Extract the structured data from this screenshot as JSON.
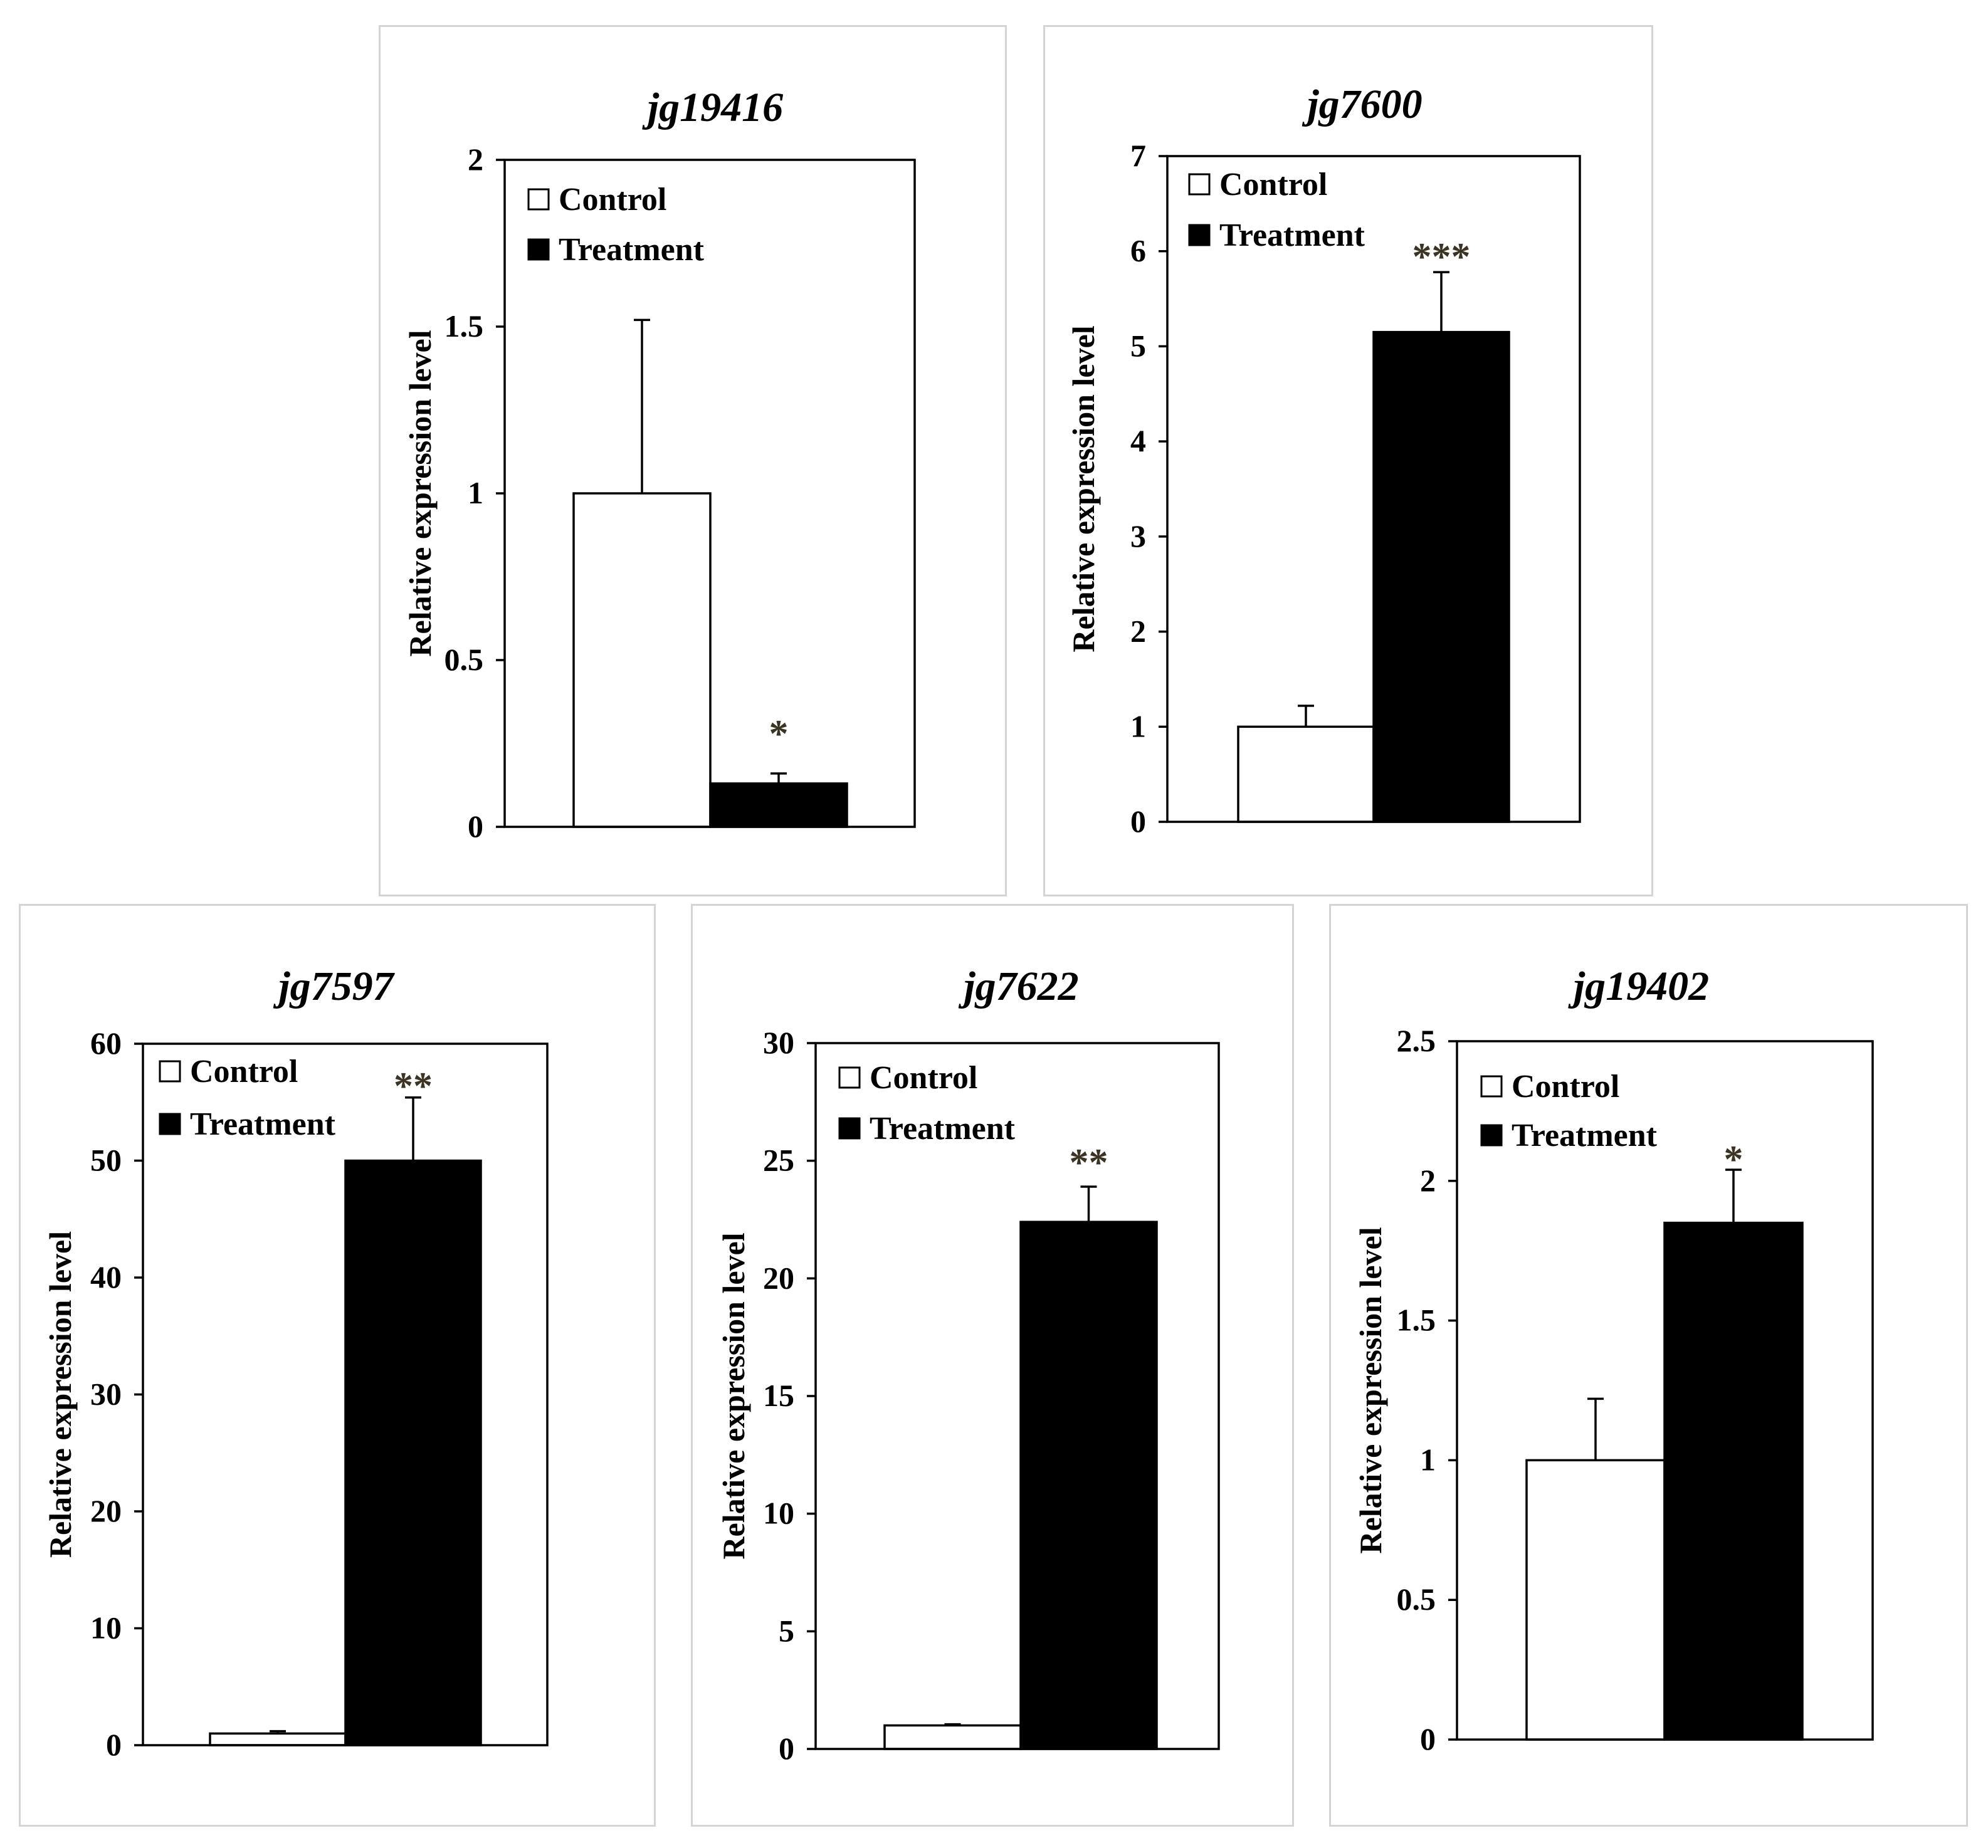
{
  "figure": {
    "bar_colors": {
      "control": "#ffffff",
      "treatment": "#000000"
    },
    "stroke_color": "#000000",
    "significance_color": "#3b3424"
  },
  "chart_data": [
    {
      "type": "bar",
      "title": "jg19416",
      "ylabel": "Relative expression level",
      "xlabel": "",
      "ylim": [
        0,
        2
      ],
      "yticks": [
        "0",
        "0.5",
        "1",
        "1.5",
        "2"
      ],
      "ytick_values": [
        0,
        0.5,
        1,
        1.5,
        2
      ],
      "legend": [
        "Control",
        "Treatment"
      ],
      "legend_position": "top-left",
      "series": [
        {
          "name": "Control",
          "values": [
            1.0
          ],
          "error": [
            0.52
          ]
        },
        {
          "name": "Treatment",
          "values": [
            0.13
          ],
          "error": [
            0.03
          ]
        }
      ],
      "significance": "*"
    },
    {
      "type": "bar",
      "title": "jg7600",
      "ylabel": "Relative expression level",
      "xlabel": "",
      "ylim": [
        0,
        7
      ],
      "yticks": [
        "0",
        "1",
        "2",
        "3",
        "4",
        "5",
        "6",
        "7"
      ],
      "ytick_values": [
        0,
        1,
        2,
        3,
        4,
        5,
        6,
        7
      ],
      "legend": [
        "Control",
        "Treatment"
      ],
      "legend_position": "top-left",
      "series": [
        {
          "name": "Control",
          "values": [
            1.0
          ],
          "error": [
            0.22
          ]
        },
        {
          "name": "Treatment",
          "values": [
            5.15
          ],
          "error": [
            0.63
          ]
        }
      ],
      "significance": "***"
    },
    {
      "type": "bar",
      "title": "jg7597",
      "ylabel": "Relative expression level",
      "xlabel": "",
      "ylim": [
        0,
        60
      ],
      "yticks": [
        "0",
        "10",
        "20",
        "30",
        "40",
        "50",
        "60"
      ],
      "ytick_values": [
        0,
        10,
        20,
        30,
        40,
        50,
        60
      ],
      "legend": [
        "Control",
        "Treatment"
      ],
      "legend_position": "top-left",
      "series": [
        {
          "name": "Control",
          "values": [
            1.0
          ],
          "error": [
            0.2
          ]
        },
        {
          "name": "Treatment",
          "values": [
            50.0
          ],
          "error": [
            5.4
          ]
        }
      ],
      "significance": "**"
    },
    {
      "type": "bar",
      "title": "jg7622",
      "ylabel": "Relative expression level",
      "xlabel": "",
      "ylim": [
        0,
        30
      ],
      "yticks": [
        "0",
        "5",
        "10",
        "15",
        "20",
        "25",
        "30"
      ],
      "ytick_values": [
        0,
        5,
        10,
        15,
        20,
        25,
        30
      ],
      "legend": [
        "Control",
        "Treatment"
      ],
      "legend_position": "top-left",
      "series": [
        {
          "name": "Control",
          "values": [
            1.0
          ],
          "error": [
            0.05
          ]
        },
        {
          "name": "Treatment",
          "values": [
            22.4
          ],
          "error": [
            1.5
          ]
        }
      ],
      "significance": "**"
    },
    {
      "type": "bar",
      "title": "jg19402",
      "ylabel": "Relative expression level",
      "xlabel": "",
      "ylim": [
        0,
        2.5
      ],
      "yticks": [
        "0",
        "0.5",
        "1",
        "1.5",
        "2",
        "2.5"
      ],
      "ytick_values": [
        0,
        0.5,
        1,
        1.5,
        2,
        2.5
      ],
      "legend": [
        "Control",
        "Treatment"
      ],
      "legend_position": "top-left",
      "series": [
        {
          "name": "Control",
          "values": [
            1.0
          ],
          "error": [
            0.22
          ]
        },
        {
          "name": "Treatment",
          "values": [
            1.85
          ],
          "error": [
            0.19
          ]
        }
      ],
      "significance": "*"
    }
  ]
}
